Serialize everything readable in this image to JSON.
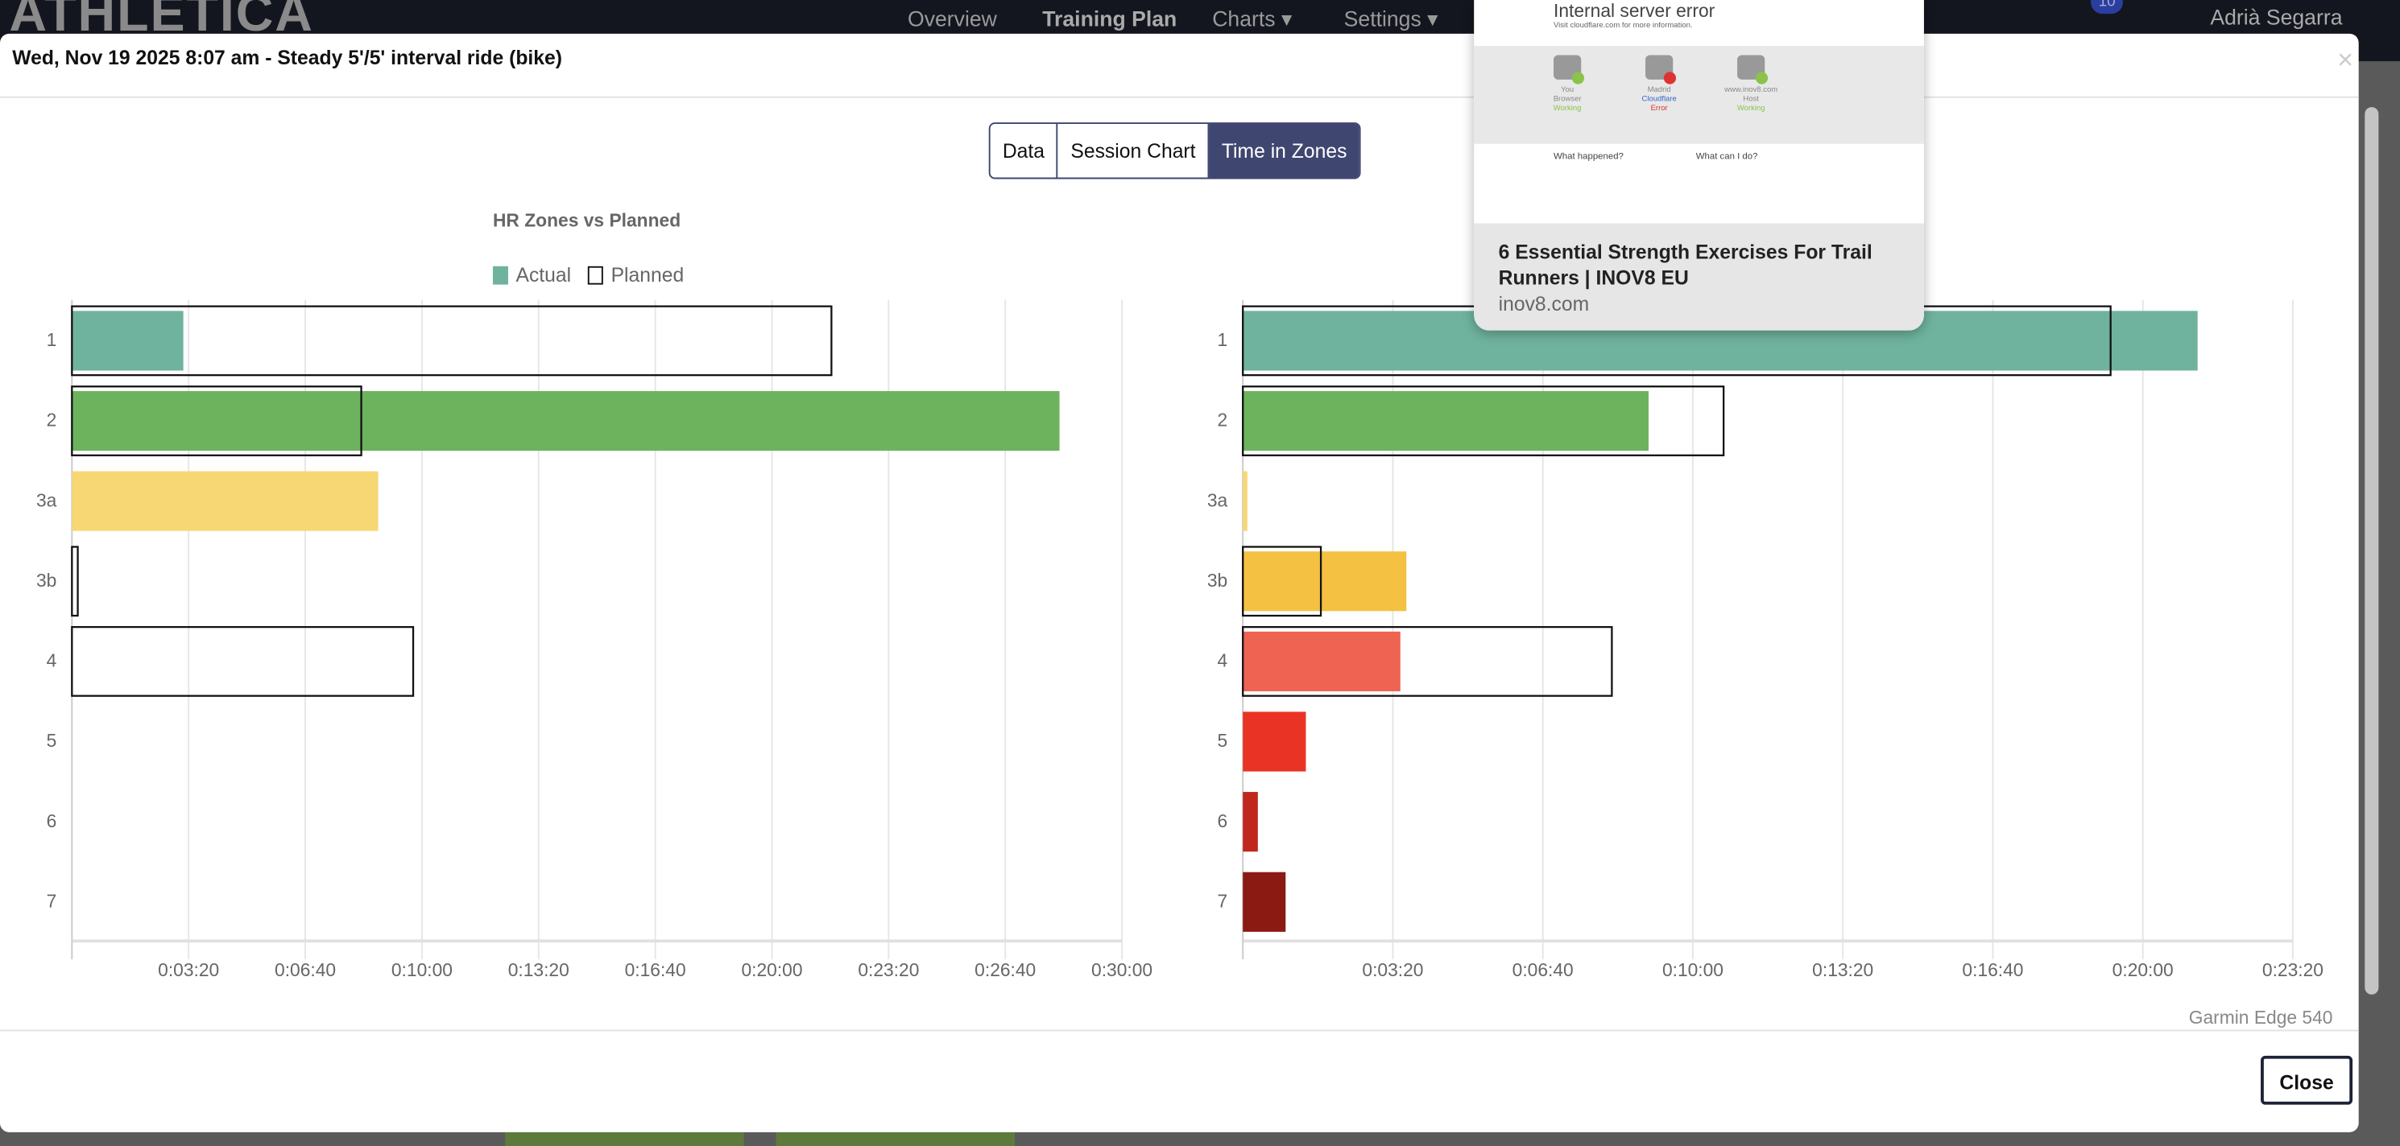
{
  "topbar": {
    "logo": "ATHLETICA",
    "nav": [
      "Overview",
      "Training Plan",
      "Charts ▾",
      "Settings ▾"
    ],
    "notifications": "10",
    "user": "Adrià Segarra"
  },
  "modal": {
    "title": "Wed, Nov 19 2025 8:07 am - Steady 5'/5' interval ride (bike)",
    "close_icon": "×",
    "tabs": [
      "Data",
      "Session Chart",
      "Time in Zones"
    ],
    "active_tab": "Time in Zones",
    "device": "Garmin Edge 540",
    "close_label": "Close"
  },
  "legend": {
    "actual": "Actual",
    "planned": "Planned"
  },
  "popup": {
    "error_title": "Internal server error",
    "error_detail": "Visit cloudflare.com for more information.",
    "nodes": [
      {
        "name": "You",
        "role": "Browser",
        "status": "Working"
      },
      {
        "name": "Madrid",
        "role": "Cloudflare",
        "status": "Error"
      },
      {
        "name": "www.inov8.com",
        "role": "Host",
        "status": "Working"
      }
    ],
    "q1": "What happened?",
    "q2": "What can I do?",
    "page_title": "6 Essential Strength Exercises For Trail Runners | INOV8 EU",
    "domain": "inov8.com"
  },
  "colors": {
    "accent": "#3f4670",
    "zones": [
      "#6fb39f",
      "#6db35e",
      "#f7d774",
      "#f4c142",
      "#ee6352",
      "#e93324",
      "#c0281d",
      "#8b1a12"
    ]
  },
  "chart_data": [
    {
      "type": "bar",
      "orientation": "horizontal",
      "title": "HR Zones vs Planned",
      "categories": [
        "1",
        "2",
        "3a",
        "3b",
        "4",
        "5",
        "6",
        "7"
      ],
      "series": [
        {
          "name": "Actual",
          "values": [
            191,
            1693,
            525,
            0,
            0,
            0,
            0,
            0
          ]
        },
        {
          "name": "Planned",
          "values": [
            1302,
            496,
            0,
            10,
            585,
            0,
            0,
            0
          ]
        }
      ],
      "xunit": "seconds",
      "xlim": [
        0,
        1800
      ],
      "xticks": [
        "0:03:20",
        "0:06:40",
        "0:10:00",
        "0:13:20",
        "0:16:40",
        "0:20:00",
        "0:23:20",
        "0:26:40",
        "0:30:00"
      ],
      "grid": true,
      "legend": "top-left"
    },
    {
      "type": "bar",
      "orientation": "horizontal",
      "categories": [
        "1",
        "2",
        "3a",
        "3b",
        "4",
        "5",
        "6",
        "7"
      ],
      "series": [
        {
          "name": "Actual",
          "values": [
            1273,
            541,
            6,
            218,
            210,
            84,
            20,
            57
          ]
        },
        {
          "name": "Planned",
          "values": [
            1157,
            641,
            0,
            104,
            492,
            0,
            0,
            0
          ]
        }
      ],
      "xunit": "seconds",
      "xlim": [
        0,
        1400
      ],
      "xticks": [
        "0:03:20",
        "0:06:40",
        "0:10:00",
        "0:13:20",
        "0:16:40",
        "0:20:00",
        "0:23:20"
      ],
      "grid": true
    }
  ]
}
